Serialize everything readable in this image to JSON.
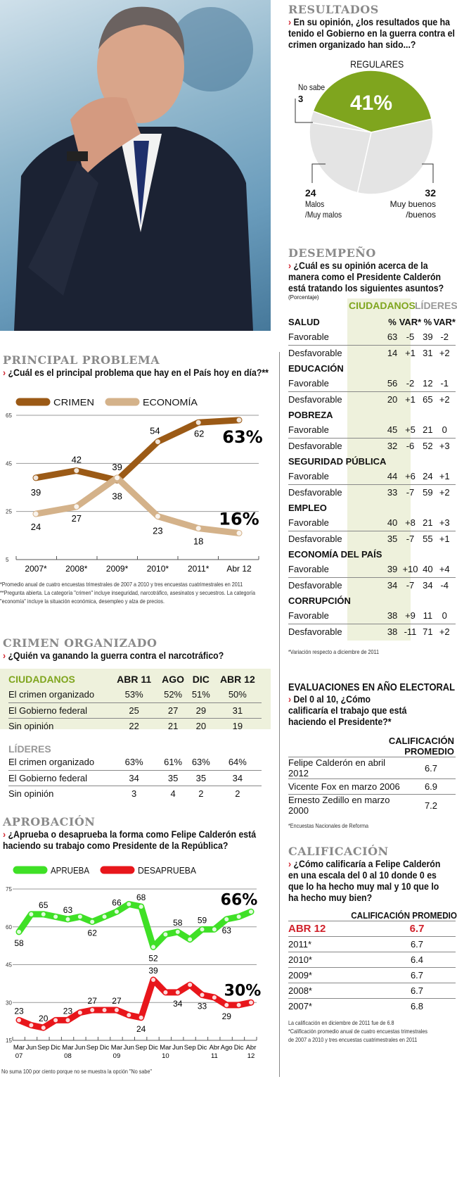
{
  "colors": {
    "green": "#7fa51e",
    "brown": "#9b5a16",
    "tan": "#d4b28a",
    "aprueba": "#3fe026",
    "desaprueba": "#e8161b",
    "red": "#d0202a",
    "section_gray": "#8a8a8a",
    "highlight_bg": "#eef1dc"
  },
  "photo": {
    "icon": "portrait-photo"
  },
  "resultados": {
    "title": "RESULTADOS",
    "question": "En su opinión, ¿los resultados que ha tenido el Gobierno en la guerra contra el crimen organizado han sido...?",
    "regulares_label": "REGULARES",
    "regulares_value": "41%",
    "no_sabe_label": "No sabe",
    "no_sabe_value": "3",
    "malos_value": "24",
    "malos_label1": "Malos",
    "malos_label2": "/Muy malos",
    "buenos_value": "32",
    "buenos_label1": "Muy buenos",
    "buenos_label2": "/buenos"
  },
  "desempeno": {
    "title": "DESEMPEÑO",
    "question": "¿Cuál es su opinión acerca de la manera como el Presidente Calderón está tratando los siguientes asuntos?",
    "unit": "(Porcentaje)",
    "group_ciudadanos": "CIUDADANOS",
    "group_lideres": "LÍDERES",
    "col_pct": "%",
    "col_var": "VAR*",
    "categories": [
      {
        "name": "SALUD",
        "rows": [
          {
            "label": "Favorable",
            "c": "63",
            "cv": "-5",
            "l": "39",
            "lv": "-2"
          },
          {
            "label": "Desfavorable",
            "c": "14",
            "cv": "+1",
            "l": "31",
            "lv": "+2"
          }
        ]
      },
      {
        "name": "EDUCACIÓN",
        "rows": [
          {
            "label": "Favorable",
            "c": "56",
            "cv": "-2",
            "l": "12",
            "lv": "-1"
          },
          {
            "label": "Desfavorable",
            "c": "20",
            "cv": "+1",
            "l": "65",
            "lv": "+2"
          }
        ]
      },
      {
        "name": "POBREZA",
        "rows": [
          {
            "label": "Favorable",
            "c": "45",
            "cv": "+5",
            "l": "21",
            "lv": "0"
          },
          {
            "label": "Desfavorable",
            "c": "32",
            "cv": "-6",
            "l": "52",
            "lv": "+3"
          }
        ]
      },
      {
        "name": "SEGURIDAD PÚBLICA",
        "rows": [
          {
            "label": "Favorable",
            "c": "44",
            "cv": "+6",
            "l": "24",
            "lv": "+1"
          },
          {
            "label": "Desfavorable",
            "c": "33",
            "cv": "-7",
            "l": "59",
            "lv": "+2"
          }
        ]
      },
      {
        "name": "EMPLEO",
        "rows": [
          {
            "label": "Favorable",
            "c": "40",
            "cv": "+8",
            "l": "21",
            "lv": "+3"
          },
          {
            "label": "Desfavorable",
            "c": "35",
            "cv": "-7",
            "l": "55",
            "lv": "+1"
          }
        ]
      },
      {
        "name": "ECONOMÍA DEL PAÍS",
        "rows": [
          {
            "label": "Favorable",
            "c": "39",
            "cv": "+10",
            "l": "40",
            "lv": "+4"
          },
          {
            "label": "Desfavorable",
            "c": "34",
            "cv": "-7",
            "l": "34",
            "lv": "-4"
          }
        ]
      },
      {
        "name": "CORRUPCIÓN",
        "rows": [
          {
            "label": "Favorable",
            "c": "38",
            "cv": "+9",
            "l": "11",
            "lv": "0"
          },
          {
            "label": "Desfavorable",
            "c": "38",
            "cv": "-11",
            "l": "71",
            "lv": "+2"
          }
        ]
      }
    ],
    "note": "*Variación respecto a diciembre de 2011"
  },
  "principal": {
    "title": "PRINCIPAL PROBLEMA",
    "question": "¿Cuál es el principal problema que hay en el País hoy en día?**",
    "notes": [
      "*Promedio anual de cuatro encuestas trimestrales de 2007 a 2010 y tres encuestas cuatrimestrales en 2011",
      "**Pregunta abierta. La categoría \"crimen\" incluye inseguridad, narcotráfico, asesinatos y secuestros. La categoría \"economía\" incluye la situación económica, desempleo y alza de precios."
    ]
  },
  "crimen": {
    "title": "CRIMEN ORGANIZADO",
    "question": "¿Quién va ganando la guerra contra el narcotráfico?",
    "columns": [
      "ABR 11",
      "AGO",
      "DIC",
      "ABR 12"
    ],
    "ciudadanos_label": "CIUDADANOS",
    "ciudadanos": [
      {
        "label": "El crimen organizado",
        "values": [
          "53%",
          "52%",
          "51%",
          "50%"
        ]
      },
      {
        "label": "El Gobierno federal",
        "values": [
          "25",
          "27",
          "29",
          "31"
        ]
      },
      {
        "label": "Sin opinión",
        "values": [
          "22",
          "21",
          "20",
          "19"
        ]
      }
    ],
    "lideres_label": "LÍDERES",
    "lideres": [
      {
        "label": "El crimen organizado",
        "values": [
          "63%",
          "61%",
          "63%",
          "64%"
        ]
      },
      {
        "label": "El Gobierno federal",
        "values": [
          "34",
          "35",
          "35",
          "34"
        ]
      },
      {
        "label": "Sin opinión",
        "values": [
          "3",
          "4",
          "2",
          "2"
        ]
      }
    ]
  },
  "aprobacion": {
    "title": "APROBACIÓN",
    "question": "¿Aprueba o desaprueba la forma como Felipe Calderón está haciendo su trabajo como Presidente de la República?",
    "note": "No suma 100 por ciento porque no se muestra la opción \"No sabe\""
  },
  "evaluaciones": {
    "title": "EVALUACIONES EN AÑO ELECTORAL",
    "question": "Del 0 al 10, ¿Cómo calificaría el trabajo que está haciendo el Presidente?*",
    "col1": "CALIFICACIÓN",
    "col2": "PROMEDIO",
    "rows": [
      {
        "label": "Felipe Calderón en abril 2012",
        "value": "6.7"
      },
      {
        "label": "Vicente Fox en marzo 2006",
        "value": "6.9"
      },
      {
        "label": "Ernesto Zedillo en marzo 2000",
        "value": "7.2"
      }
    ],
    "note": "*Encuestas Nacionales de Reforma"
  },
  "calificacion": {
    "title": "CALIFICACIÓN",
    "question": "¿Cómo calificaría a Felipe Calderón en una escala del 0 al 10 donde 0 es que lo ha hecho muy mal y 10 que lo ha hecho muy bien?",
    "col": "CALIFICACIÓN PROMEDIO",
    "rows": [
      {
        "label": "ABR 12",
        "value": "6.7"
      },
      {
        "label": "2011*",
        "value": "6.7"
      },
      {
        "label": "2010*",
        "value": "6.4"
      },
      {
        "label": "2009*",
        "value": "6.7"
      },
      {
        "label": "2008*",
        "value": "6.7"
      },
      {
        "label": "2007*",
        "value": "6.8"
      }
    ],
    "notes": [
      "La calificación en diciembre de 2011 fue de 6.8",
      "*Calificación promedio anual de cuatro encuestas trimestrales de 2007 a 2010 y tres encuestas cuatrimestrales en 2011"
    ]
  },
  "chart_data": [
    {
      "type": "line",
      "id": "principal",
      "title": "PRINCIPAL PROBLEMA",
      "categories": [
        "2007*",
        "2008*",
        "2009*",
        "2010*",
        "2011*",
        "Abr 12"
      ],
      "series": [
        {
          "name": "CRIMEN",
          "values": [
            39,
            42,
            38,
            54,
            62,
            63
          ],
          "labels": [
            "39",
            "42",
            "38",
            "54",
            "62",
            "63%"
          ]
        },
        {
          "name": "ECONOMÍA",
          "values": [
            24,
            27,
            39,
            23,
            18,
            16
          ],
          "labels": [
            "24",
            "27",
            "39",
            "23",
            "18",
            "16%"
          ]
        }
      ],
      "yticks": [
        5,
        25,
        45,
        65
      ],
      "ylim": [
        5,
        65
      ],
      "legend": "top-left"
    },
    {
      "type": "line",
      "id": "aprobacion",
      "title": "APROBACIÓN",
      "categories": [
        "Mar 07",
        "Jun",
        "Sep",
        "Dic",
        "Mar 08",
        "Jun",
        "Sep",
        "Dic",
        "Mar 09",
        "Jun",
        "Sep",
        "Dic",
        "Mar 10",
        "Jun",
        "Sep",
        "Dic",
        "Abr 11",
        "Ago",
        "Dic",
        "Abr 12"
      ],
      "xlabels_top": [
        "Mar",
        "Jun",
        "Sep",
        "Dic",
        "Mar",
        "Jun",
        "Sep",
        "Dic",
        "Mar",
        "Jun",
        "Sep",
        "Dic",
        "Mar",
        "Jun",
        "Sep",
        "Dic",
        "Abr",
        "Ago",
        "Dic",
        "Abr"
      ],
      "xlabels_bottom": [
        "07",
        "",
        "",
        "",
        "08",
        "",
        "",
        "",
        "09",
        "",
        "",
        "",
        "10",
        "",
        "",
        "",
        "11",
        "",
        "",
        "12"
      ],
      "series": [
        {
          "name": "APRUEBA",
          "values": [
            58,
            65,
            65,
            64,
            63,
            64,
            62,
            64,
            66,
            69,
            68,
            52,
            57,
            58,
            55,
            59,
            59,
            63,
            64,
            66
          ],
          "labels": [
            {
              "i": 0,
              "t": "58",
              "pos": "below"
            },
            {
              "i": 2,
              "t": "65",
              "pos": "above"
            },
            {
              "i": 4,
              "t": "63",
              "pos": "above"
            },
            {
              "i": 6,
              "t": "62",
              "pos": "below"
            },
            {
              "i": 8,
              "t": "66",
              "pos": "above"
            },
            {
              "i": 10,
              "t": "68",
              "pos": "above"
            },
            {
              "i": 11,
              "t": "52",
              "pos": "below"
            },
            {
              "i": 13,
              "t": "58",
              "pos": "above"
            },
            {
              "i": 15,
              "t": "59",
              "pos": "above"
            },
            {
              "i": 17,
              "t": "63",
              "pos": "below"
            }
          ],
          "final": "66%"
        },
        {
          "name": "DESAPRUEBA",
          "values": [
            23,
            21,
            20,
            23,
            23,
            26,
            27,
            27,
            27,
            25,
            24,
            39,
            34,
            34,
            37,
            33,
            32,
            29,
            29,
            30
          ],
          "labels": [
            {
              "i": 0,
              "t": "23",
              "pos": "above"
            },
            {
              "i": 2,
              "t": "20",
              "pos": "above"
            },
            {
              "i": 4,
              "t": "23",
              "pos": "above"
            },
            {
              "i": 6,
              "t": "27",
              "pos": "above"
            },
            {
              "i": 8,
              "t": "27",
              "pos": "above"
            },
            {
              "i": 10,
              "t": "24",
              "pos": "below"
            },
            {
              "i": 11,
              "t": "39",
              "pos": "above"
            },
            {
              "i": 13,
              "t": "34",
              "pos": "below"
            },
            {
              "i": 15,
              "t": "33",
              "pos": "below"
            },
            {
              "i": 17,
              "t": "29",
              "pos": "below"
            }
          ],
          "final": "30%"
        }
      ],
      "yticks": [
        15,
        30,
        45,
        60,
        75
      ],
      "ylim": [
        15,
        75
      ],
      "legend": "top-left"
    },
    {
      "type": "pie",
      "id": "resultados",
      "slices": [
        {
          "name": "Regulares",
          "value": 41
        },
        {
          "name": "Muy buenos/buenos",
          "value": 32
        },
        {
          "name": "Malos/Muy malos",
          "value": 24
        },
        {
          "name": "No sabe",
          "value": 3
        }
      ]
    }
  ]
}
